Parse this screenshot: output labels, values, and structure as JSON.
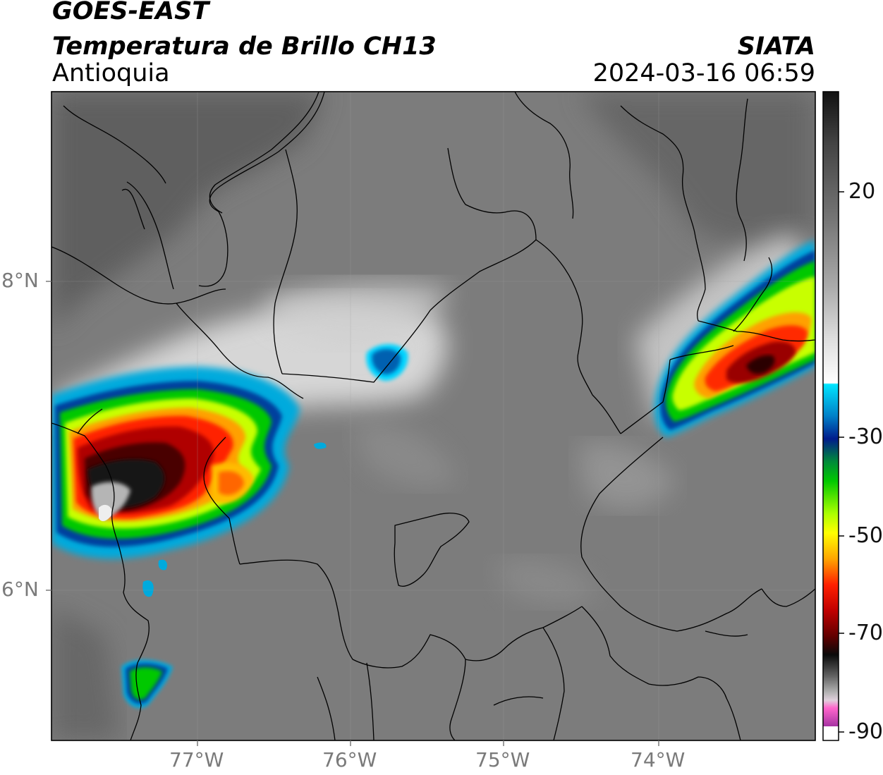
{
  "header": {
    "line1": "GOES-EAST",
    "line2": "Temperatura de Brillo CH13",
    "line3": "Antioquia",
    "brand": "SIATA",
    "timestamp": "2024-03-16 06:59"
  },
  "axes": {
    "lat_labels": [
      "8°N",
      "6°N"
    ],
    "lon_labels": [
      "77°W",
      "76°W",
      "75°W",
      "74°W"
    ]
  },
  "colorbar": {
    "ticks": [
      "20",
      "-30",
      "-50",
      "-70",
      "-90"
    ]
  },
  "colors": {
    "frame": "#000000",
    "land_gray": "#7c7c7c",
    "ocean_gray": "#5e5e5e"
  }
}
